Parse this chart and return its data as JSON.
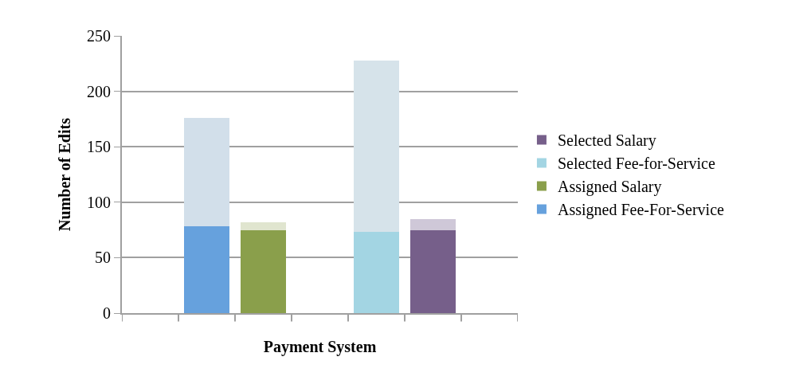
{
  "chart_data": {
    "type": "bar",
    "stacked": true,
    "xlabel": "Payment System",
    "ylabel": "Number of Edits",
    "categories": [
      null,
      null,
      null,
      null,
      null,
      null,
      null
    ],
    "series": [
      {
        "name": "Assigned Fee-For-Service",
        "color": "#66a1dd",
        "values": [
          null,
          78,
          null,
          null,
          null,
          null,
          null
        ]
      },
      {
        "name": "Assigned Salary",
        "color": "#8a9f4b",
        "values": [
          null,
          null,
          75,
          null,
          null,
          null,
          null
        ]
      },
      {
        "name": "Selected Fee-for-Service",
        "color": "#a3d5e3",
        "values": [
          null,
          null,
          null,
          null,
          73,
          null,
          null
        ]
      },
      {
        "name": "Selected Salary",
        "color": "#765f8a",
        "values": [
          null,
          null,
          null,
          null,
          null,
          75,
          null
        ]
      },
      {
        "colors": [
          null,
          "#d2dfea",
          "#e0e5cf",
          null,
          "#d6e3ea",
          "#cfc8d8",
          null
        ],
        "values": [
          null,
          98,
          7,
          null,
          155,
          10,
          null
        ]
      }
    ],
    "ylim": [
      0,
      250
    ],
    "yticks": [
      0,
      50,
      100,
      150,
      200,
      250
    ],
    "grid": "y",
    "legend": "right"
  }
}
